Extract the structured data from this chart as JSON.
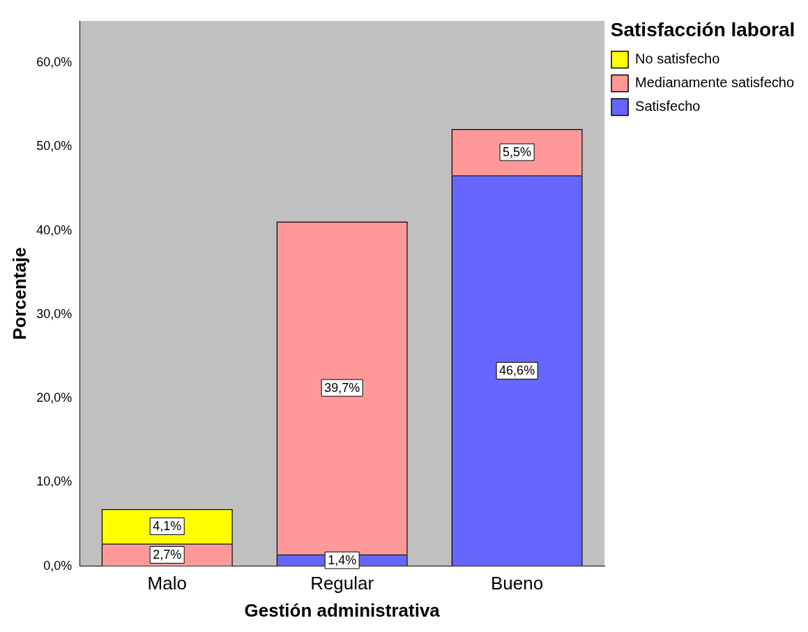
{
  "chart_data": {
    "type": "bar",
    "stacked": true,
    "xlabel": "Gestión administrativa",
    "ylabel": "Porcentaje",
    "legend_title": "Satisfacción laboral",
    "legend": "right",
    "categories": [
      "Malo",
      "Regular",
      "Bueno"
    ],
    "series": [
      {
        "name": "Satisfecho",
        "color": "#6666ff",
        "values": [
          null,
          1.4,
          46.6
        ],
        "value_labels": [
          null,
          "1,4%",
          "46,6%"
        ]
      },
      {
        "name": "Medianamente satisfecho",
        "color": "#ff9999",
        "values": [
          2.7,
          39.7,
          5.5
        ],
        "value_labels": [
          "2,7%",
          "39,7%",
          "5,5%"
        ]
      },
      {
        "name": "No satisfecho",
        "color": "#ffff00",
        "values": [
          4.1,
          null,
          null
        ],
        "value_labels": [
          "4,1%",
          null,
          null
        ]
      }
    ],
    "ylim": [
      0,
      65
    ],
    "yticks": [
      {
        "value": 0,
        "label": "0,0%"
      },
      {
        "value": 10,
        "label": "10,0%"
      },
      {
        "value": 20,
        "label": "20,0%"
      },
      {
        "value": 30,
        "label": "30,0%"
      },
      {
        "value": 40,
        "label": "40,0%"
      },
      {
        "value": 50,
        "label": "50,0%"
      },
      {
        "value": 60,
        "label": "60,0%"
      }
    ]
  }
}
